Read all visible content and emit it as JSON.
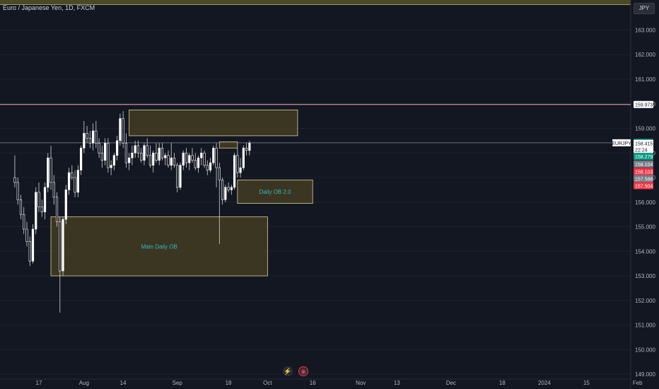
{
  "header": {
    "title": "Euro / Japanese Yen, 1D, FXCM",
    "currency": "JPY"
  },
  "icons": {
    "flash": "lightning-icon",
    "target": "target-icon"
  },
  "chart_data": {
    "type": "candlestick",
    "ylim": [
      148.8,
      164.05
    ],
    "yticks": [
      149,
      150,
      151,
      152,
      153,
      154,
      155,
      156,
      157,
      158,
      159,
      160,
      161,
      162,
      163
    ],
    "xticks": [
      {
        "label": "17",
        "day": 0
      },
      {
        "label": "Aug",
        "day": 15
      },
      {
        "label": "14",
        "day": 28
      },
      {
        "label": "Sep",
        "day": 46
      },
      {
        "label": "18",
        "day": 63
      },
      {
        "label": "Oct",
        "day": 76
      },
      {
        "label": "16",
        "day": 91
      },
      {
        "label": "Nov",
        "day": 107
      },
      {
        "label": "13",
        "day": 119
      },
      {
        "label": "Dec",
        "day": 137
      },
      {
        "label": "18",
        "day": 154
      },
      {
        "label": "2024",
        "day": 168
      },
      {
        "label": "15",
        "day": 182
      },
      {
        "label": "Feb",
        "day": 199
      }
    ],
    "candles": [
      [
        157.0,
        157.9,
        156.6,
        156.8
      ],
      [
        156.8,
        157.0,
        155.9,
        156.1
      ],
      [
        156.1,
        156.3,
        155.3,
        155.5
      ],
      [
        155.5,
        155.8,
        154.7,
        154.9
      ],
      [
        154.9,
        155.2,
        154.2,
        154.4
      ],
      [
        154.4,
        154.6,
        153.4,
        153.6
      ],
      [
        153.6,
        155.1,
        153.5,
        154.9
      ],
      [
        154.9,
        156.6,
        154.7,
        156.4
      ],
      [
        156.4,
        156.8,
        155.6,
        155.8
      ],
      [
        155.8,
        156.1,
        155.4,
        155.6
      ],
      [
        155.6,
        156.8,
        155.3,
        156.6
      ],
      [
        156.6,
        158.0,
        156.4,
        157.8
      ],
      [
        157.8,
        158.3,
        156.5,
        156.8
      ],
      [
        156.8,
        157.1,
        155.9,
        156.2
      ],
      [
        156.2,
        156.4,
        155.0,
        155.2
      ],
      [
        155.2,
        155.4,
        151.5,
        153.2
      ],
      [
        153.2,
        155.4,
        153.0,
        155.3
      ],
      [
        155.3,
        156.7,
        155.1,
        156.5
      ],
      [
        156.5,
        157.4,
        156.3,
        157.2
      ],
      [
        157.2,
        157.5,
        156.9,
        157.0
      ],
      [
        157.0,
        157.3,
        156.2,
        156.4
      ],
      [
        156.4,
        157.5,
        156.2,
        157.3
      ],
      [
        157.3,
        158.3,
        157.1,
        158.2
      ],
      [
        158.2,
        159.3,
        158.0,
        158.8
      ],
      [
        158.8,
        159.1,
        158.4,
        158.6
      ],
      [
        158.6,
        158.9,
        158.2,
        158.4
      ],
      [
        158.4,
        159.2,
        158.1,
        158.9
      ],
      [
        158.9,
        159.3,
        158.2,
        158.4
      ],
      [
        158.4,
        158.6,
        157.8,
        158.0
      ],
      [
        158.0,
        158.3,
        157.4,
        157.7
      ],
      [
        157.7,
        158.6,
        157.5,
        158.4
      ],
      [
        158.4,
        158.6,
        157.2,
        157.4
      ],
      [
        157.4,
        157.7,
        157.1,
        157.5
      ],
      [
        157.5,
        158.0,
        157.3,
        157.9
      ],
      [
        157.9,
        158.7,
        157.7,
        158.5
      ],
      [
        158.5,
        159.6,
        158.3,
        159.4
      ],
      [
        159.4,
        159.7,
        158.2,
        158.4
      ],
      [
        158.4,
        158.8,
        157.4,
        157.6
      ],
      [
        157.6,
        158.0,
        157.3,
        157.8
      ],
      [
        157.8,
        158.3,
        157.5,
        158.0
      ],
      [
        158.0,
        158.5,
        157.8,
        158.3
      ],
      [
        158.3,
        158.5,
        157.8,
        158.0
      ],
      [
        158.0,
        158.2,
        157.6,
        157.7
      ],
      [
        157.7,
        158.4,
        157.5,
        158.3
      ],
      [
        158.3,
        158.6,
        157.8,
        157.9
      ],
      [
        157.9,
        158.3,
        157.4,
        157.5
      ],
      [
        157.5,
        158.1,
        157.2,
        158.0
      ],
      [
        158.0,
        158.4,
        157.6,
        157.7
      ],
      [
        157.7,
        158.4,
        157.5,
        158.2
      ],
      [
        158.2,
        158.4,
        157.7,
        157.8
      ],
      [
        157.8,
        158.0,
        157.5,
        157.9
      ],
      [
        157.9,
        158.1,
        157.4,
        157.5
      ],
      [
        157.5,
        158.4,
        157.3,
        157.8
      ],
      [
        157.8,
        158.0,
        157.4,
        157.5
      ],
      [
        157.5,
        157.6,
        156.4,
        156.6
      ],
      [
        156.6,
        157.6,
        156.5,
        157.5
      ],
      [
        157.5,
        158.1,
        157.3,
        158.0
      ],
      [
        158.0,
        158.2,
        157.4,
        157.6
      ],
      [
        157.6,
        158.0,
        157.3,
        157.9
      ],
      [
        157.9,
        158.2,
        157.6,
        157.7
      ],
      [
        157.7,
        158.0,
        157.3,
        157.4
      ],
      [
        157.4,
        157.9,
        157.2,
        157.8
      ],
      [
        157.8,
        158.2,
        157.5,
        158.0
      ],
      [
        158.0,
        158.1,
        157.4,
        157.5
      ],
      [
        157.5,
        157.7,
        157.1,
        157.3
      ],
      [
        157.3,
        157.8,
        157.2,
        157.6
      ],
      [
        157.6,
        158.3,
        157.5,
        158.2
      ],
      [
        158.2,
        158.4,
        156.6,
        157.4
      ],
      [
        157.4,
        157.6,
        154.3,
        156.9
      ],
      [
        156.9,
        157.0,
        155.9,
        156.1
      ],
      [
        156.1,
        156.7,
        156.0,
        156.6
      ],
      [
        156.6,
        156.8,
        156.4,
        156.5
      ],
      [
        156.5,
        156.7,
        156.3,
        156.6
      ],
      [
        156.6,
        158.0,
        156.5,
        157.9
      ],
      [
        157.9,
        158.2,
        157.0,
        157.2
      ],
      [
        157.2,
        157.8,
        157.0,
        157.4
      ],
      [
        157.4,
        158.3,
        157.3,
        158.2
      ],
      [
        158.2,
        158.4,
        157.9,
        158.1
      ],
      [
        158.1,
        158.5,
        157.9,
        158.4
      ]
    ],
    "start_day": -8,
    "current_price": 158.415,
    "annotations": [
      {
        "label": "Main Daily OB",
        "x1": 4,
        "x2": 76,
        "y1": 155.4,
        "y2": 153.0
      },
      {
        "label": "Daily OB 2.0",
        "x1": 66,
        "x2": 91,
        "y1": 156.9,
        "y2": 155.95
      },
      {
        "label": "",
        "x1": 30,
        "x2": 86,
        "y1": 159.75,
        "y2": 158.7
      },
      {
        "label": "",
        "x1": 60,
        "x2": 66,
        "y1": 158.45,
        "y2": 158.2
      }
    ],
    "hlines": [
      {
        "price": 159.973,
        "color": "#f7a7b8"
      },
      {
        "price": 158.415,
        "color": "#6b6f7a"
      }
    ],
    "price_tags": [
      {
        "label": "159.973",
        "price": 159.973,
        "bg": "#ffffff",
        "fg": "#131722"
      },
      {
        "label": "158.431",
        "price": 158.431,
        "bg": "#089981",
        "fg": "#ffffff"
      },
      {
        "label": "EURJPY",
        "price": 158.415,
        "bg": "#ffffff",
        "fg": "#131722",
        "left": true
      },
      {
        "label": "158.415",
        "price": 158.39,
        "bg": "#ffffff",
        "fg": "#131722"
      },
      {
        "label": "22:24",
        "price": 158.14,
        "bg": "#ffffff",
        "fg": "#131722"
      },
      {
        "label": "158.279",
        "price": 157.86,
        "bg": "#089981",
        "fg": "#ffffff"
      },
      {
        "label": "158.104",
        "price": 157.55,
        "bg": "#787b86",
        "fg": "#ffffff"
      },
      {
        "label": "158.103",
        "price": 157.25,
        "bg": "#f23645",
        "fg": "#ffffff"
      },
      {
        "label": "157.588",
        "price": 156.96,
        "bg": "#787b86",
        "fg": "#ffffff"
      },
      {
        "label": "157.504",
        "price": 156.67,
        "bg": "#f23645",
        "fg": "#ffffff"
      }
    ],
    "colors": {
      "up": "#ffffff",
      "down": "#ffffff",
      "box_fill": "#4a4222",
      "box_stroke": "#d8d0a0",
      "label": "#2fb8c9",
      "axis_text": "#b2b5be",
      "grid": "#1e222d"
    }
  }
}
